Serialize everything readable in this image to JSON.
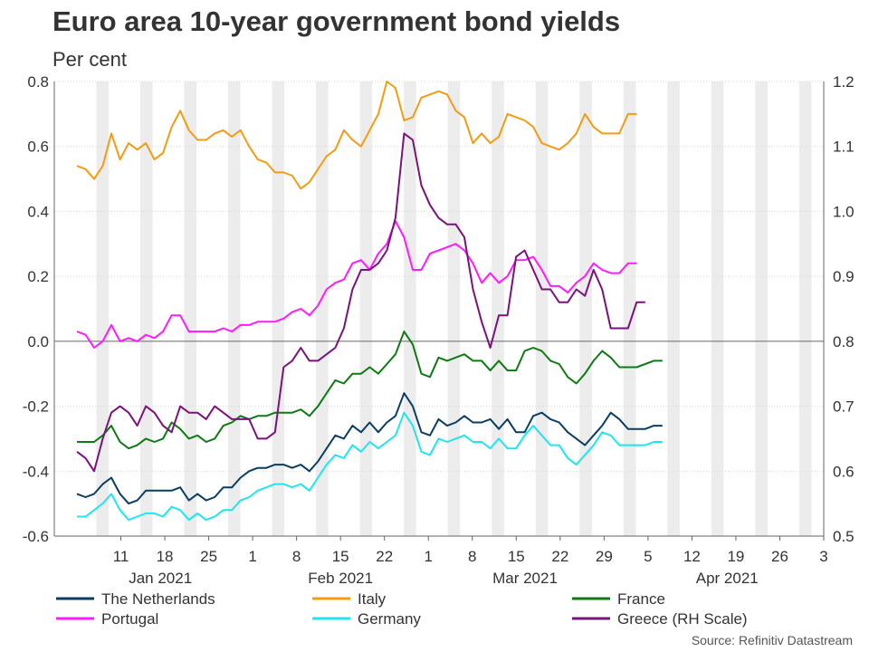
{
  "chart_data": {
    "type": "line",
    "title": "Euro area 10-year government bond yields",
    "subtitle": "Per cent",
    "source": "Source: Refinitiv Datastream",
    "left_axis": {
      "min": -0.6,
      "max": 0.8,
      "ticks": [
        "0.8",
        "0.6",
        "0.4",
        "0.2",
        "0.0",
        "-0.2",
        "-0.4",
        "-0.6"
      ],
      "tick_values": [
        0.8,
        0.6,
        0.4,
        0.2,
        0.0,
        -0.2,
        -0.4,
        -0.6
      ]
    },
    "right_axis": {
      "min": 0.5,
      "max": 1.2,
      "ticks": [
        "1.2",
        "1.1",
        "1.0",
        "0.9",
        "0.8",
        "0.7",
        "0.6",
        "0.5"
      ],
      "tick_values": [
        1.2,
        1.1,
        1.0,
        0.9,
        0.8,
        0.7,
        0.6,
        0.5
      ]
    },
    "x_range": [
      0,
      85
    ],
    "x_ticks": [
      {
        "label": "11",
        "x": 5
      },
      {
        "label": "18",
        "x": 10
      },
      {
        "label": "25",
        "x": 15
      },
      {
        "label": "1",
        "x": 20
      },
      {
        "label": "8",
        "x": 25
      },
      {
        "label": "15",
        "x": 30
      },
      {
        "label": "22",
        "x": 35
      },
      {
        "label": "1",
        "x": 40
      },
      {
        "label": "8",
        "x": 45
      },
      {
        "label": "15",
        "x": 50
      },
      {
        "label": "22",
        "x": 55
      },
      {
        "label": "29",
        "x": 60
      },
      {
        "label": "5",
        "x": 65
      },
      {
        "label": "12",
        "x": 70
      },
      {
        "label": "19",
        "x": 75
      },
      {
        "label": "26",
        "x": 80
      },
      {
        "label": "3",
        "x": 85
      }
    ],
    "months": [
      {
        "label": "Jan 2021",
        "x": 9.5
      },
      {
        "label": "Feb 2021",
        "x": 30
      },
      {
        "label": "Mar 2021",
        "x": 51
      },
      {
        "label": "Apr 2021",
        "x": 74
      }
    ],
    "weekend_bands": [
      3,
      8,
      13,
      18,
      23,
      28,
      33,
      38,
      43,
      48,
      53,
      58,
      63,
      68,
      73,
      78,
      83
    ],
    "series": [
      {
        "name": "The Netherlands",
        "color": "#0a3d62",
        "axis": "left",
        "values": [
          -0.47,
          -0.48,
          -0.47,
          -0.44,
          -0.42,
          -0.47,
          -0.5,
          -0.49,
          -0.46,
          -0.46,
          -0.46,
          -0.46,
          -0.45,
          -0.49,
          -0.47,
          -0.49,
          -0.48,
          -0.45,
          -0.45,
          -0.42,
          -0.4,
          -0.39,
          -0.39,
          -0.38,
          -0.38,
          -0.39,
          -0.38,
          -0.4,
          -0.37,
          -0.33,
          -0.29,
          -0.3,
          -0.26,
          -0.28,
          -0.25,
          -0.28,
          -0.25,
          -0.23,
          -0.16,
          -0.2,
          -0.28,
          -0.29,
          -0.24,
          -0.26,
          -0.25,
          -0.23,
          -0.25,
          -0.25,
          -0.24,
          -0.27,
          -0.24,
          -0.28,
          -0.28,
          -0.23,
          -0.22,
          -0.24,
          -0.25,
          -0.28,
          -0.3,
          -0.32,
          -0.29,
          -0.26,
          -0.22,
          -0.24,
          -0.27,
          -0.27,
          -0.27,
          -0.26,
          -0.26
        ]
      },
      {
        "name": "Italy",
        "color": "#f39c12",
        "axis": "left",
        "values": [
          0.54,
          0.53,
          0.5,
          0.54,
          0.64,
          0.56,
          0.61,
          0.59,
          0.61,
          0.56,
          0.58,
          0.66,
          0.71,
          0.65,
          0.62,
          0.62,
          0.64,
          0.65,
          0.63,
          0.65,
          0.6,
          0.56,
          0.55,
          0.52,
          0.52,
          0.51,
          0.47,
          0.49,
          0.53,
          0.57,
          0.59,
          0.65,
          0.62,
          0.6,
          0.65,
          0.7,
          0.8,
          0.78,
          0.68,
          0.69,
          0.75,
          0.76,
          0.77,
          0.76,
          0.71,
          0.69,
          0.61,
          0.64,
          0.61,
          0.63,
          0.7,
          0.69,
          0.68,
          0.66,
          0.61,
          0.6,
          0.59,
          0.61,
          0.64,
          0.7,
          0.66,
          0.64,
          0.64,
          0.64,
          0.7,
          0.7
        ]
      },
      {
        "name": "France",
        "color": "#0e7a12",
        "axis": "left",
        "values": [
          -0.31,
          -0.31,
          -0.31,
          -0.29,
          -0.26,
          -0.31,
          -0.33,
          -0.32,
          -0.3,
          -0.31,
          -0.3,
          -0.25,
          -0.27,
          -0.3,
          -0.29,
          -0.31,
          -0.3,
          -0.26,
          -0.25,
          -0.23,
          -0.24,
          -0.23,
          -0.23,
          -0.22,
          -0.22,
          -0.22,
          -0.21,
          -0.23,
          -0.2,
          -0.16,
          -0.12,
          -0.13,
          -0.1,
          -0.1,
          -0.08,
          -0.1,
          -0.07,
          -0.04,
          0.03,
          -0.01,
          -0.1,
          -0.11,
          -0.05,
          -0.06,
          -0.05,
          -0.04,
          -0.06,
          -0.06,
          -0.09,
          -0.06,
          -0.09,
          -0.09,
          -0.03,
          -0.02,
          -0.03,
          -0.06,
          -0.07,
          -0.11,
          -0.13,
          -0.1,
          -0.06,
          -0.03,
          -0.05,
          -0.08,
          -0.08,
          -0.08,
          -0.07,
          -0.06,
          -0.06
        ]
      },
      {
        "name": "Portugal",
        "color": "#ff1aff",
        "axis": "left",
        "values": [
          0.03,
          0.02,
          -0.02,
          0.0,
          0.05,
          0.0,
          0.01,
          0.0,
          0.02,
          0.01,
          0.03,
          0.08,
          0.08,
          0.03,
          0.03,
          0.03,
          0.03,
          0.04,
          0.03,
          0.05,
          0.05,
          0.06,
          0.06,
          0.06,
          0.07,
          0.09,
          0.1,
          0.08,
          0.11,
          0.16,
          0.18,
          0.19,
          0.24,
          0.25,
          0.22,
          0.27,
          0.3,
          0.37,
          0.32,
          0.22,
          0.22,
          0.27,
          0.28,
          0.29,
          0.3,
          0.28,
          0.24,
          0.18,
          0.21,
          0.18,
          0.2,
          0.25,
          0.25,
          0.26,
          0.22,
          0.17,
          0.17,
          0.15,
          0.18,
          0.2,
          0.24,
          0.22,
          0.21,
          0.21,
          0.24,
          0.24
        ]
      },
      {
        "name": "Germany",
        "color": "#1ee6f0",
        "axis": "left",
        "values": [
          -0.54,
          -0.54,
          -0.52,
          -0.5,
          -0.47,
          -0.52,
          -0.55,
          -0.54,
          -0.53,
          -0.53,
          -0.54,
          -0.51,
          -0.52,
          -0.55,
          -0.53,
          -0.55,
          -0.54,
          -0.52,
          -0.52,
          -0.49,
          -0.48,
          -0.46,
          -0.45,
          -0.44,
          -0.44,
          -0.45,
          -0.44,
          -0.46,
          -0.42,
          -0.38,
          -0.35,
          -0.36,
          -0.32,
          -0.34,
          -0.31,
          -0.33,
          -0.31,
          -0.29,
          -0.22,
          -0.26,
          -0.34,
          -0.35,
          -0.3,
          -0.31,
          -0.3,
          -0.29,
          -0.31,
          -0.31,
          -0.33,
          -0.3,
          -0.33,
          -0.33,
          -0.29,
          -0.26,
          -0.29,
          -0.32,
          -0.32,
          -0.36,
          -0.38,
          -0.35,
          -0.32,
          -0.28,
          -0.29,
          -0.32,
          -0.32,
          -0.32,
          -0.32,
          -0.31,
          -0.31
        ]
      },
      {
        "name": "Greece (RH Scale)",
        "color": "#7b117b",
        "axis": "right",
        "values": [
          0.63,
          0.62,
          0.6,
          0.65,
          0.69,
          0.7,
          0.69,
          0.67,
          0.7,
          0.69,
          0.67,
          0.66,
          0.7,
          0.69,
          0.69,
          0.68,
          0.7,
          0.69,
          0.68,
          0.68,
          0.68,
          0.65,
          0.65,
          0.66,
          0.76,
          0.77,
          0.79,
          0.77,
          0.77,
          0.78,
          0.79,
          0.82,
          0.88,
          0.91,
          0.91,
          0.92,
          0.94,
          0.99,
          1.12,
          1.11,
          1.04,
          1.01,
          0.99,
          0.98,
          0.98,
          0.96,
          0.88,
          0.83,
          0.79,
          0.84,
          0.84,
          0.93,
          0.94,
          0.91,
          0.88,
          0.88,
          0.86,
          0.86,
          0.88,
          0.87,
          0.91,
          0.88,
          0.82,
          0.82,
          0.82,
          0.86,
          0.86
        ]
      }
    ],
    "legend": [
      {
        "name": "The Netherlands",
        "color": "#0a3d62"
      },
      {
        "name": "Italy",
        "color": "#f39c12"
      },
      {
        "name": "France",
        "color": "#0e7a12"
      },
      {
        "name": "Portugal",
        "color": "#ff1aff"
      },
      {
        "name": "Germany",
        "color": "#1ee6f0"
      },
      {
        "name": "Greece (RH Scale)",
        "color": "#7b117b"
      }
    ]
  }
}
